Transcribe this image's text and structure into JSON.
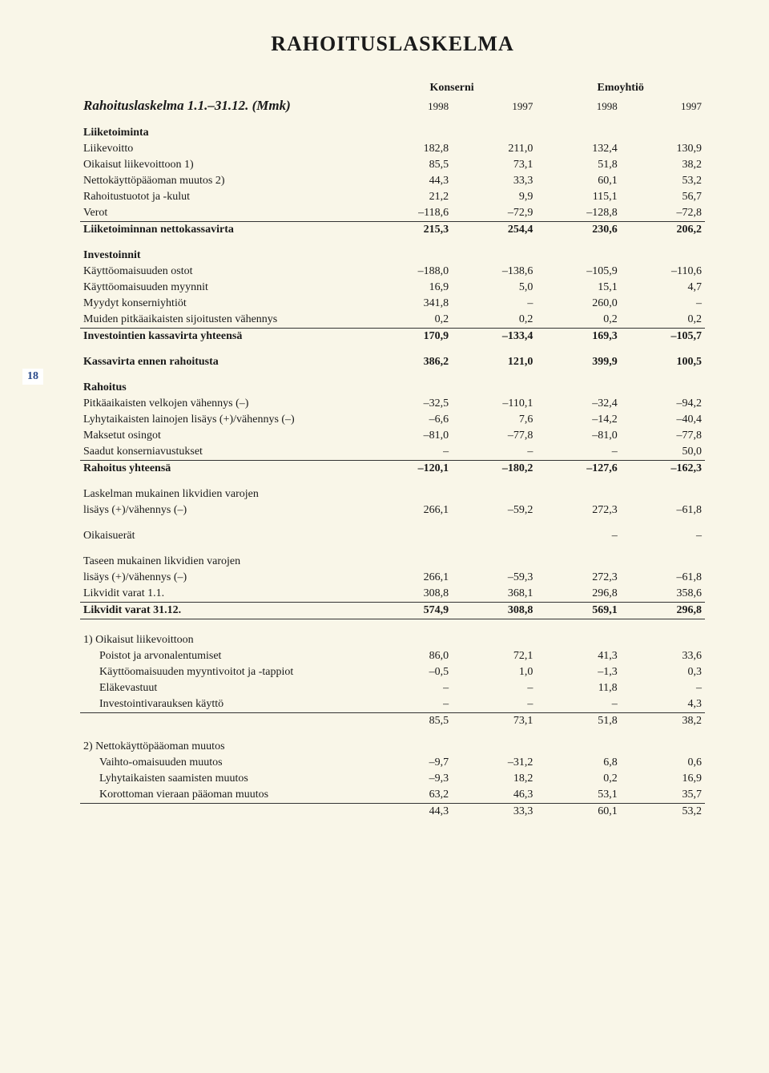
{
  "page_number": "18",
  "title": "RAHOITUSLASKELMA",
  "subtitle": "Rahoituslaskelma 1.1.–31.12. (Mmk)",
  "group_headers": [
    "Konserni",
    "Emoyhtiö"
  ],
  "years": [
    "1998",
    "1997",
    "1998",
    "1997"
  ],
  "sections": [
    {
      "header": "Liiketoiminta",
      "first": true,
      "rows": [
        {
          "label": "Liikevoitto",
          "vals": [
            "182,8",
            "211,0",
            "132,4",
            "130,9"
          ]
        },
        {
          "label": "Oikaisut liikevoittoon  1)",
          "vals": [
            "85,5",
            "73,1",
            "51,8",
            "38,2"
          ]
        },
        {
          "label": "Nettokäyttöpääoman muutos  2)",
          "vals": [
            "44,3",
            "33,3",
            "60,1",
            "53,2"
          ]
        },
        {
          "label": "Rahoitustuotot ja -kulut",
          "vals": [
            "21,2",
            "9,9",
            "115,1",
            "56,7"
          ]
        },
        {
          "label": "Verot",
          "vals": [
            "–118,6",
            "–72,9",
            "–128,8",
            "–72,8"
          ]
        },
        {
          "label": "Liiketoiminnan nettokassavirta",
          "vals": [
            "215,3",
            "254,4",
            "230,6",
            "206,2"
          ],
          "bold": true,
          "rule_top": true
        }
      ]
    },
    {
      "header": "Investoinnit",
      "rows": [
        {
          "label": "Käyttöomaisuuden ostot",
          "vals": [
            "–188,0",
            "–138,6",
            "–105,9",
            "–110,6"
          ]
        },
        {
          "label": "Käyttöomaisuuden myynnit",
          "vals": [
            "16,9",
            "5,0",
            "15,1",
            "4,7"
          ]
        },
        {
          "label": "Myydyt konserniyhtiöt",
          "vals": [
            "341,8",
            "–",
            "260,0",
            "–"
          ]
        },
        {
          "label": "Muiden pitkäaikaisten sijoitusten vähennys",
          "vals": [
            "0,2",
            "0,2",
            "0,2",
            "0,2"
          ]
        },
        {
          "label": "Investointien kassavirta yhteensä",
          "vals": [
            "170,9",
            "–133,4",
            "169,3",
            "–105,7"
          ],
          "bold": true,
          "rule_top": true
        }
      ]
    },
    {
      "header": "Kassavirta ennen rahoitusta",
      "vals": [
        "386,2",
        "121,0",
        "399,9",
        "100,5"
      ],
      "standalone_bold": true
    },
    {
      "header": "Rahoitus",
      "rows": [
        {
          "label": "Pitkäaikaisten velkojen vähennys (–)",
          "vals": [
            "–32,5",
            "–110,1",
            "–32,4",
            "–94,2"
          ]
        },
        {
          "label": "Lyhytaikaisten lainojen lisäys (+)/vähennys (–)",
          "vals": [
            "–6,6",
            "7,6",
            "–14,2",
            "–40,4"
          ]
        },
        {
          "label": "Maksetut osingot",
          "vals": [
            "–81,0",
            "–77,8",
            "–81,0",
            "–77,8"
          ]
        },
        {
          "label": "Saadut konserniavustukset",
          "vals": [
            "–",
            "–",
            "–",
            "50,0"
          ]
        },
        {
          "label": "Rahoitus yhteensä",
          "vals": [
            "–120,1",
            "–180,2",
            "–127,6",
            "–162,3"
          ],
          "bold": true,
          "rule_top": true
        }
      ]
    },
    {
      "header": "Laskelman mukainen likvidien varojen",
      "plain_header": true,
      "rows": [
        {
          "label": "lisäys (+)/vähennys (–)",
          "vals": [
            "266,1",
            "–59,2",
            "272,3",
            "–61,8"
          ]
        }
      ]
    },
    {
      "header": "Oikaisuerät",
      "vals": [
        "",
        "",
        "–",
        "–"
      ],
      "standalone_plain": true
    },
    {
      "header": "Taseen mukainen likvidien varojen",
      "plain_header": true,
      "rows": [
        {
          "label": "lisäys (+)/vähennys (–)",
          "vals": [
            "266,1",
            "–59,3",
            "272,3",
            "–61,8"
          ]
        },
        {
          "label": "Likvidit varat 1.1.",
          "vals": [
            "308,8",
            "368,1",
            "296,8",
            "358,6"
          ]
        },
        {
          "label": "Likvidit varat 31.12.",
          "vals": [
            "574,9",
            "308,8",
            "569,1",
            "296,8"
          ],
          "bold": true,
          "rule_top": true,
          "rule_bottom": true
        }
      ]
    },
    {
      "header": "1) Oikaisut liikevoittoon",
      "plain_header": true,
      "rows": [
        {
          "label": "Poistot ja arvonalentumiset",
          "indent": true,
          "vals": [
            "86,0",
            "72,1",
            "41,3",
            "33,6"
          ]
        },
        {
          "label": "Käyttöomaisuuden myyntivoitot ja -tappiot",
          "indent": true,
          "vals": [
            "–0,5",
            "1,0",
            "–1,3",
            "0,3"
          ]
        },
        {
          "label": "Eläkevastuut",
          "indent": true,
          "vals": [
            "–",
            "–",
            "11,8",
            "–"
          ]
        },
        {
          "label": "Investointivarauksen käyttö",
          "indent": true,
          "vals": [
            "–",
            "–",
            "–",
            "4,3"
          ]
        },
        {
          "label": "",
          "vals": [
            "85,5",
            "73,1",
            "51,8",
            "38,2"
          ],
          "rule_top": true
        }
      ]
    },
    {
      "header": "2) Nettokäyttöpääoman muutos",
      "plain_header": true,
      "rows": [
        {
          "label": "Vaihto-omaisuuden muutos",
          "indent": true,
          "vals": [
            "–9,7",
            "–31,2",
            "6,8",
            "0,6"
          ]
        },
        {
          "label": "Lyhytaikaisten saamisten muutos",
          "indent": true,
          "vals": [
            "–9,3",
            "18,2",
            "0,2",
            "16,9"
          ]
        },
        {
          "label": "Korottoman vieraan pääoman muutos",
          "indent": true,
          "vals": [
            "63,2",
            "46,3",
            "53,1",
            "35,7"
          ]
        },
        {
          "label": "",
          "vals": [
            "44,3",
            "33,3",
            "60,1",
            "53,2"
          ],
          "rule_top": true
        }
      ]
    }
  ]
}
